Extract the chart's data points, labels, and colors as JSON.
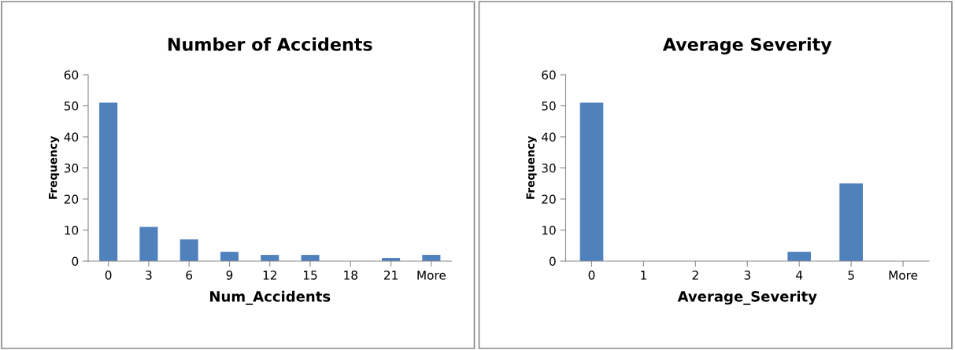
{
  "chart_data": [
    {
      "type": "bar",
      "title": "Number of Accidents",
      "xlabel": "Num_Accidents",
      "ylabel": "Frequency",
      "categories": [
        "0",
        "3",
        "6",
        "9",
        "12",
        "15",
        "18",
        "21",
        "More"
      ],
      "values": [
        51,
        11,
        7,
        3,
        2,
        2,
        0,
        1,
        2
      ],
      "color": "#4f81bd",
      "ylim": [
        0,
        60
      ],
      "yticks": [
        0,
        10,
        20,
        30,
        40,
        50,
        60
      ],
      "grid": false,
      "legend": false
    },
    {
      "type": "bar",
      "title": "Average Severity",
      "xlabel": "Average_Severity",
      "ylabel": "Frequency",
      "categories": [
        "0",
        "1",
        "2",
        "3",
        "4",
        "5",
        "More"
      ],
      "values": [
        51,
        0,
        0,
        0,
        3,
        25,
        0
      ],
      "color": "#4f81bd",
      "ylim": [
        0,
        60
      ],
      "yticks": [
        0,
        10,
        20,
        30,
        40,
        50,
        60
      ],
      "grid": false,
      "legend": false
    }
  ]
}
